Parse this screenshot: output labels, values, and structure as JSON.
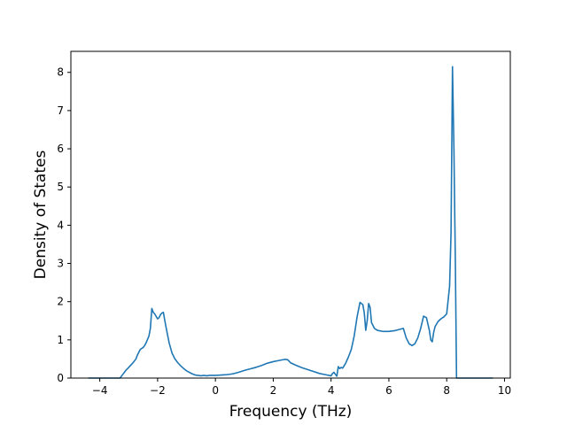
{
  "chart_data": {
    "type": "line",
    "title": "",
    "xlabel": "Frequency (THz)",
    "ylabel": "Density of States",
    "xlim": [
      -5.0,
      10.2
    ],
    "ylim": [
      0,
      8.55
    ],
    "xticks": [
      -4,
      -2,
      0,
      2,
      4,
      6,
      8,
      10
    ],
    "xtick_labels": [
      "−4",
      "−2",
      "0",
      "2",
      "4",
      "6",
      "8",
      "10"
    ],
    "yticks": [
      0,
      1,
      2,
      3,
      4,
      5,
      6,
      7,
      8
    ],
    "ytick_labels": [
      "0",
      "1",
      "2",
      "3",
      "4",
      "5",
      "6",
      "7",
      "8"
    ],
    "grid": false,
    "legend": "none",
    "series": [
      {
        "color": "#1f77b4",
        "x": [
          -4.4,
          -3.3,
          -3.2,
          -3.1,
          -3.0,
          -2.9,
          -2.8,
          -2.75,
          -2.7,
          -2.6,
          -2.5,
          -2.45,
          -2.4,
          -2.3,
          -2.25,
          -2.2,
          -2.15,
          -2.1,
          -2.0,
          -1.95,
          -1.9,
          -1.85,
          -1.8,
          -1.75,
          -1.7,
          -1.6,
          -1.5,
          -1.4,
          -1.3,
          -1.2,
          -1.1,
          -1.0,
          -0.9,
          -0.8,
          -0.7,
          -0.6,
          -0.5,
          -0.4,
          -0.3,
          -0.2,
          -0.1,
          0.0,
          0.2,
          0.4,
          0.6,
          0.8,
          1.0,
          1.2,
          1.4,
          1.6,
          1.8,
          2.0,
          2.2,
          2.4,
          2.5,
          2.6,
          2.8,
          3.0,
          3.2,
          3.4,
          3.6,
          3.8,
          4.0,
          4.05,
          4.1,
          4.15,
          4.2,
          4.25,
          4.3,
          4.35,
          4.4,
          4.5,
          4.6,
          4.7,
          4.8,
          4.9,
          5.0,
          5.1,
          5.15,
          5.2,
          5.25,
          5.3,
          5.35,
          5.4,
          5.5,
          5.6,
          5.8,
          6.0,
          6.2,
          6.4,
          6.5,
          6.6,
          6.7,
          6.8,
          6.9,
          7.0,
          7.1,
          7.2,
          7.3,
          7.4,
          7.45,
          7.5,
          7.55,
          7.6,
          7.7,
          7.8,
          7.9,
          8.0,
          8.1,
          8.15,
          8.2,
          8.25,
          8.3,
          8.32,
          8.34,
          8.37,
          8.4,
          8.5,
          9.0,
          9.6
        ],
        "y": [
          0.0,
          0.0,
          0.1,
          0.2,
          0.28,
          0.36,
          0.45,
          0.5,
          0.6,
          0.75,
          0.8,
          0.85,
          0.92,
          1.1,
          1.3,
          1.82,
          1.72,
          1.68,
          1.55,
          1.58,
          1.66,
          1.7,
          1.72,
          1.5,
          1.3,
          0.92,
          0.65,
          0.5,
          0.4,
          0.32,
          0.25,
          0.19,
          0.15,
          0.11,
          0.08,
          0.07,
          0.06,
          0.07,
          0.06,
          0.07,
          0.07,
          0.07,
          0.08,
          0.09,
          0.11,
          0.15,
          0.2,
          0.24,
          0.28,
          0.33,
          0.39,
          0.43,
          0.46,
          0.49,
          0.48,
          0.4,
          0.33,
          0.27,
          0.22,
          0.17,
          0.12,
          0.09,
          0.06,
          0.12,
          0.15,
          0.1,
          0.05,
          0.3,
          0.25,
          0.28,
          0.26,
          0.38,
          0.55,
          0.75,
          1.1,
          1.6,
          1.98,
          1.92,
          1.7,
          1.25,
          1.5,
          1.95,
          1.85,
          1.45,
          1.3,
          1.25,
          1.22,
          1.22,
          1.24,
          1.28,
          1.3,
          1.05,
          0.9,
          0.85,
          0.9,
          1.05,
          1.3,
          1.62,
          1.58,
          1.25,
          1.0,
          0.95,
          1.2,
          1.35,
          1.48,
          1.55,
          1.6,
          1.68,
          2.4,
          3.8,
          8.15,
          6.0,
          3.0,
          1.5,
          0.0,
          0.0,
          0.0,
          0.0,
          0.0,
          0.0
        ]
      }
    ]
  }
}
